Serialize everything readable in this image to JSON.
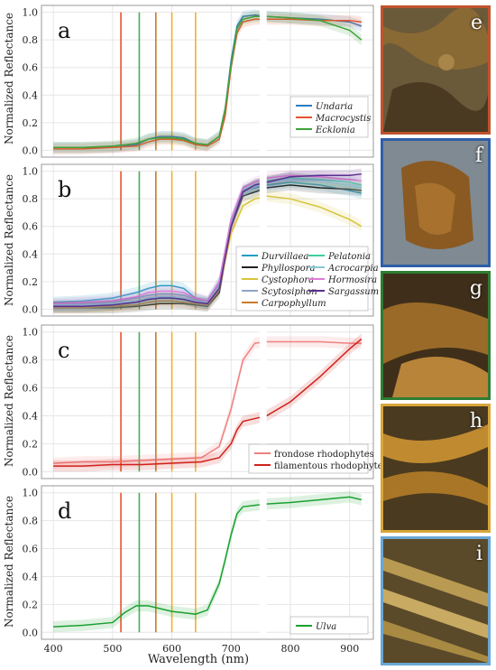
{
  "xlabel": "Wavelength (nm)",
  "ylabel": "Normalized Reflectance",
  "xticks": [
    "400",
    "500",
    "600",
    "700",
    "800",
    "900"
  ],
  "yticks": [
    "0.0",
    "0.2",
    "0.4",
    "0.6",
    "0.8",
    "1.0"
  ],
  "vlines": [
    {
      "x": 514,
      "color": "#e8542a"
    },
    {
      "x": 545,
      "color": "#3fb34f"
    },
    {
      "x": 573,
      "color": "#c97a2a"
    },
    {
      "x": 600,
      "color": "#f0b030"
    },
    {
      "x": 640,
      "color": "#f0b030"
    }
  ],
  "photos": [
    {
      "label": "e",
      "border": "#c0532c"
    },
    {
      "label": "f",
      "border": "#2f5fa7"
    },
    {
      "label": "g",
      "border": "#2e7d32"
    },
    {
      "label": "h",
      "border": "#d9a63a"
    },
    {
      "label": "i",
      "border": "#6aa7d6"
    }
  ],
  "chart_data": [
    {
      "panel": "a",
      "type": "line",
      "xlim": [
        380,
        940
      ],
      "ylim": [
        -0.05,
        1.05
      ],
      "legend_position": "right",
      "series": [
        {
          "name": "Undaria",
          "color": "#2e7bbf",
          "x": [
            400,
            450,
            500,
            540,
            560,
            580,
            600,
            620,
            640,
            660,
            680,
            690,
            700,
            710,
            720,
            740,
            760,
            800,
            850,
            900,
            920
          ],
          "y": [
            0.02,
            0.02,
            0.02,
            0.04,
            0.08,
            0.1,
            0.1,
            0.09,
            0.05,
            0.04,
            0.1,
            0.3,
            0.65,
            0.9,
            0.97,
            0.98,
            0.97,
            0.96,
            0.95,
            0.93,
            0.9
          ]
        },
        {
          "name": "Macrocystis",
          "color": "#e8542a",
          "x": [
            400,
            450,
            500,
            540,
            560,
            580,
            600,
            620,
            640,
            660,
            680,
            690,
            700,
            710,
            720,
            740,
            760,
            800,
            850,
            900,
            920
          ],
          "y": [
            0.01,
            0.01,
            0.02,
            0.03,
            0.06,
            0.08,
            0.08,
            0.07,
            0.04,
            0.03,
            0.08,
            0.25,
            0.6,
            0.85,
            0.93,
            0.95,
            0.95,
            0.95,
            0.94,
            0.94,
            0.93
          ]
        },
        {
          "name": "Ecklonia",
          "color": "#3fa33a",
          "x": [
            400,
            450,
            500,
            540,
            560,
            580,
            600,
            620,
            640,
            660,
            680,
            690,
            700,
            710,
            720,
            740,
            760,
            800,
            850,
            900,
            920
          ],
          "y": [
            0.02,
            0.02,
            0.03,
            0.05,
            0.08,
            0.09,
            0.09,
            0.08,
            0.05,
            0.04,
            0.1,
            0.3,
            0.62,
            0.88,
            0.95,
            0.97,
            0.97,
            0.96,
            0.94,
            0.87,
            0.8
          ]
        }
      ]
    },
    {
      "panel": "b",
      "type": "line",
      "xlim": [
        380,
        940
      ],
      "ylim": [
        -0.05,
        1.05
      ],
      "legend_position": "right",
      "series": [
        {
          "name": "Durvillaea",
          "color": "#1f9ec4",
          "x": [
            400,
            450,
            500,
            540,
            560,
            580,
            600,
            620,
            640,
            660,
            680,
            700,
            720,
            740,
            760,
            800,
            850,
            900,
            920
          ],
          "y": [
            0.05,
            0.06,
            0.08,
            0.12,
            0.15,
            0.17,
            0.17,
            0.15,
            0.08,
            0.05,
            0.2,
            0.65,
            0.86,
            0.88,
            0.9,
            0.92,
            0.9,
            0.86,
            0.84
          ]
        },
        {
          "name": "Phyllospora",
          "color": "#222222",
          "x": [
            400,
            450,
            500,
            540,
            560,
            580,
            600,
            620,
            640,
            660,
            680,
            700,
            720,
            740,
            760,
            800,
            850,
            900,
            920
          ],
          "y": [
            0.01,
            0.01,
            0.01,
            0.02,
            0.03,
            0.04,
            0.04,
            0.04,
            0.03,
            0.02,
            0.12,
            0.6,
            0.82,
            0.85,
            0.88,
            0.9,
            0.88,
            0.87,
            0.86
          ]
        },
        {
          "name": "Cystophora",
          "color": "#d6c43a",
          "x": [
            400,
            450,
            500,
            540,
            560,
            580,
            600,
            620,
            640,
            660,
            680,
            700,
            720,
            740,
            760,
            800,
            850,
            900,
            920
          ],
          "y": [
            0.02,
            0.02,
            0.02,
            0.05,
            0.07,
            0.08,
            0.08,
            0.07,
            0.05,
            0.04,
            0.15,
            0.55,
            0.75,
            0.8,
            0.82,
            0.8,
            0.74,
            0.65,
            0.6
          ]
        },
        {
          "name": "Scytosiphon",
          "color": "#8fa5c7",
          "x": [
            400,
            450,
            500,
            540,
            560,
            580,
            600,
            620,
            640,
            660,
            680,
            700,
            720,
            740,
            760,
            800,
            850,
            900,
            920
          ],
          "y": [
            0.03,
            0.04,
            0.05,
            0.08,
            0.1,
            0.11,
            0.11,
            0.1,
            0.07,
            0.05,
            0.18,
            0.62,
            0.85,
            0.9,
            0.92,
            0.95,
            0.93,
            0.9,
            0.88
          ]
        },
        {
          "name": "Carpophyllum",
          "color": "#c97a2a",
          "x": [
            400,
            450,
            500,
            540,
            560,
            580,
            600,
            620,
            640,
            660,
            680,
            700,
            720,
            740,
            760,
            800,
            850,
            900,
            920
          ],
          "y": [
            0.01,
            0.01,
            0.02,
            0.03,
            0.05,
            0.06,
            0.06,
            0.05,
            0.04,
            0.03,
            0.14,
            0.6,
            0.85,
            0.9,
            0.93,
            0.95,
            0.93,
            0.9,
            0.88
          ]
        },
        {
          "name": "Pelatonia",
          "color": "#3ccfa0",
          "x": [
            400,
            450,
            500,
            540,
            560,
            580,
            600,
            620,
            640,
            660,
            680,
            700,
            720,
            740,
            760,
            800,
            850,
            900,
            920
          ],
          "y": [
            0.02,
            0.02,
            0.03,
            0.05,
            0.07,
            0.08,
            0.08,
            0.07,
            0.05,
            0.04,
            0.16,
            0.62,
            0.86,
            0.9,
            0.93,
            0.95,
            0.94,
            0.92,
            0.9
          ]
        },
        {
          "name": "Acrocarpia",
          "color": "#88c9d6",
          "x": [
            400,
            450,
            500,
            540,
            560,
            580,
            600,
            620,
            640,
            660,
            680,
            700,
            720,
            740,
            760,
            800,
            850,
            900,
            920
          ],
          "y": [
            0.03,
            0.03,
            0.04,
            0.06,
            0.08,
            0.09,
            0.09,
            0.08,
            0.06,
            0.05,
            0.17,
            0.62,
            0.85,
            0.89,
            0.92,
            0.94,
            0.93,
            0.9,
            0.88
          ]
        },
        {
          "name": "Hormosira",
          "color": "#e07ad6",
          "x": [
            400,
            450,
            500,
            540,
            560,
            580,
            600,
            620,
            640,
            660,
            680,
            700,
            720,
            740,
            760,
            800,
            850,
            900,
            920
          ],
          "y": [
            0.04,
            0.05,
            0.06,
            0.09,
            0.12,
            0.13,
            0.13,
            0.12,
            0.08,
            0.06,
            0.2,
            0.65,
            0.88,
            0.92,
            0.95,
            0.97,
            0.96,
            0.94,
            0.93
          ]
        },
        {
          "name": "Sargassum",
          "color": "#5a2f8f",
          "x": [
            400,
            450,
            500,
            540,
            560,
            580,
            600,
            620,
            640,
            660,
            680,
            700,
            720,
            740,
            760,
            800,
            850,
            900,
            920
          ],
          "y": [
            0.02,
            0.02,
            0.03,
            0.05,
            0.07,
            0.08,
            0.08,
            0.07,
            0.05,
            0.04,
            0.15,
            0.6,
            0.85,
            0.9,
            0.92,
            0.96,
            0.97,
            0.97,
            0.98
          ]
        }
      ]
    },
    {
      "panel": "c",
      "type": "line",
      "xlim": [
        380,
        940
      ],
      "ylim": [
        -0.05,
        1.05
      ],
      "legend_position": "bottom-right",
      "series": [
        {
          "name": "frondose rhodophytes",
          "color": "#f08080",
          "x": [
            400,
            450,
            500,
            550,
            600,
            650,
            680,
            700,
            720,
            740,
            760,
            800,
            850,
            900,
            920
          ],
          "y": [
            0.06,
            0.07,
            0.07,
            0.08,
            0.09,
            0.1,
            0.18,
            0.45,
            0.8,
            0.92,
            0.93,
            0.93,
            0.93,
            0.92,
            0.92
          ]
        },
        {
          "name": "filamentous rhodophytes",
          "color": "#d0201a",
          "x": [
            400,
            450,
            500,
            550,
            600,
            650,
            680,
            700,
            710,
            720,
            740,
            760,
            800,
            850,
            900,
            920
          ],
          "y": [
            0.04,
            0.04,
            0.05,
            0.05,
            0.06,
            0.07,
            0.1,
            0.2,
            0.3,
            0.36,
            0.38,
            0.4,
            0.5,
            0.68,
            0.88,
            0.95
          ]
        }
      ]
    },
    {
      "panel": "d",
      "type": "line",
      "xlim": [
        380,
        940
      ],
      "ylim": [
        -0.05,
        1.05
      ],
      "legend_position": "bottom-right",
      "series": [
        {
          "name": "Ulva",
          "color": "#1aa12f",
          "x": [
            400,
            450,
            500,
            520,
            540,
            560,
            580,
            600,
            620,
            640,
            660,
            680,
            690,
            700,
            710,
            720,
            740,
            760,
            800,
            850,
            900,
            920
          ],
          "y": [
            0.04,
            0.05,
            0.07,
            0.14,
            0.19,
            0.19,
            0.17,
            0.15,
            0.14,
            0.13,
            0.16,
            0.35,
            0.52,
            0.7,
            0.85,
            0.9,
            0.91,
            0.92,
            0.93,
            0.95,
            0.97,
            0.95
          ]
        }
      ]
    }
  ]
}
